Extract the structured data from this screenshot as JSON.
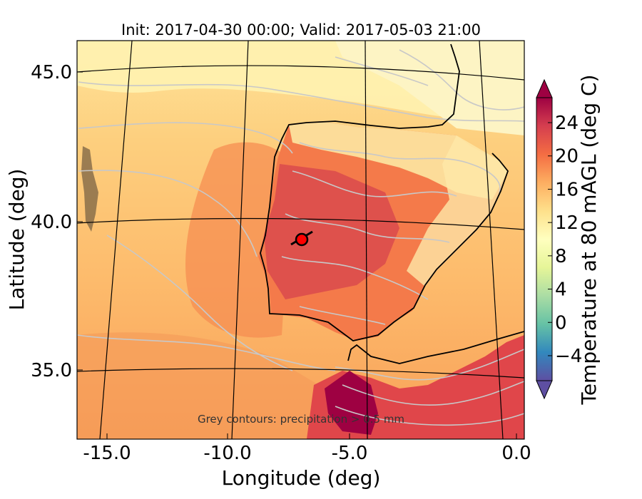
{
  "chart_data": {
    "type": "heatmap",
    "title": "Init: 2017-04-30 00:00; Valid: 2017-05-03 21:00",
    "xlabel": "Longitude (deg)",
    "ylabel": "Latitude (deg)",
    "xticks": [
      "-15.0",
      "-10.0",
      "-5.0",
      "0.0"
    ],
    "yticks": [
      "45.0",
      "40.0",
      "35.0"
    ],
    "xlim": [
      -16,
      0
    ],
    "ylim": [
      32.5,
      46
    ],
    "annotation": "Grey contours: precipitation > 0.5 mm",
    "colorbar": {
      "label": "Temperature at 80 mAGL (deg C)",
      "ticks": [
        "−4",
        "0",
        "4",
        "8",
        "12",
        "16",
        "20",
        "24"
      ],
      "tick_values": [
        -4,
        0,
        4,
        8,
        12,
        16,
        20,
        24
      ],
      "range": [
        -7,
        27
      ],
      "extend": "both",
      "colormap": "Spectral_r",
      "stops": [
        "#5e4fa2",
        "#3288bd",
        "#66c2a5",
        "#abdda4",
        "#e6f598",
        "#ffffbf",
        "#fee08b",
        "#fdae61",
        "#f46d43",
        "#d53e4f",
        "#9e0142"
      ]
    },
    "grid": true,
    "marker": {
      "lon": -7.6,
      "lat": 39.3,
      "color": "#ff0000"
    }
  }
}
